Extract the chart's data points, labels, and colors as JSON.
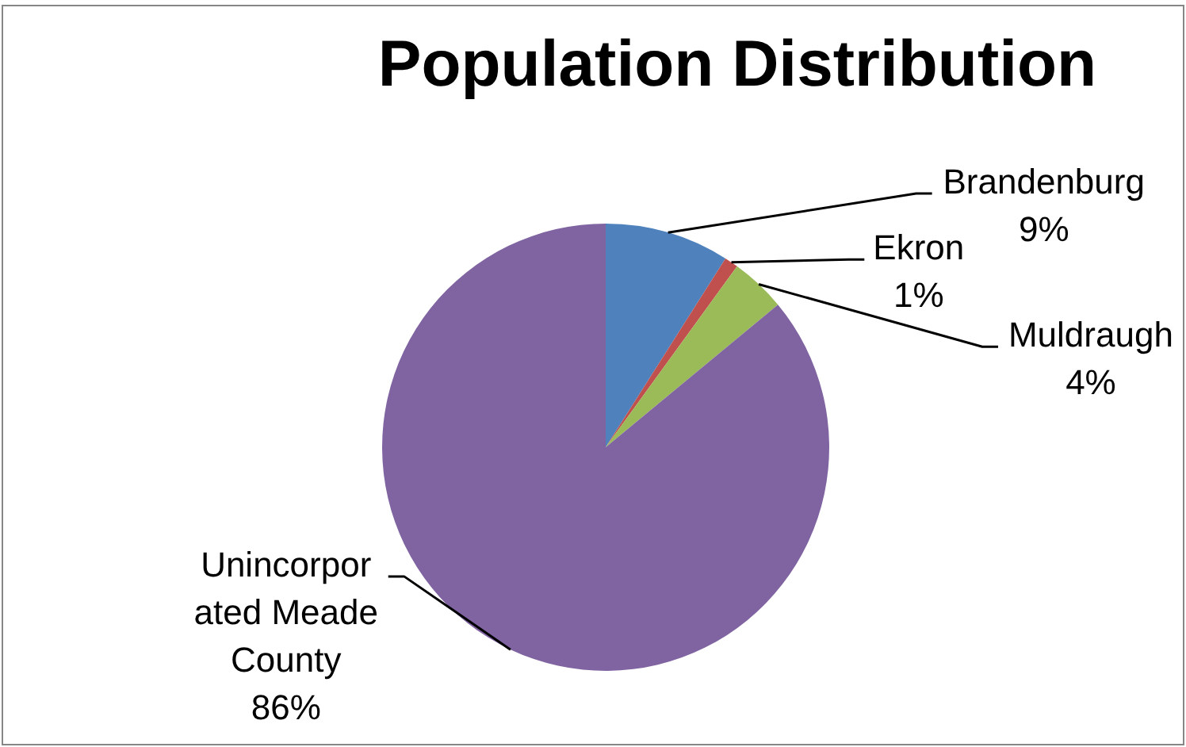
{
  "chart_data": {
    "type": "pie",
    "title": "Population Distribution",
    "categories": [
      "Brandenburg",
      "Ekron",
      "Muldraugh",
      "Unincorporated Meade County"
    ],
    "values": [
      9,
      1,
      4,
      86
    ],
    "colors": [
      "#4f81bd",
      "#c0504d",
      "#9bbb59",
      "#8064a2"
    ],
    "value_labels": [
      "9%",
      "1%",
      "4%",
      "86%"
    ]
  }
}
